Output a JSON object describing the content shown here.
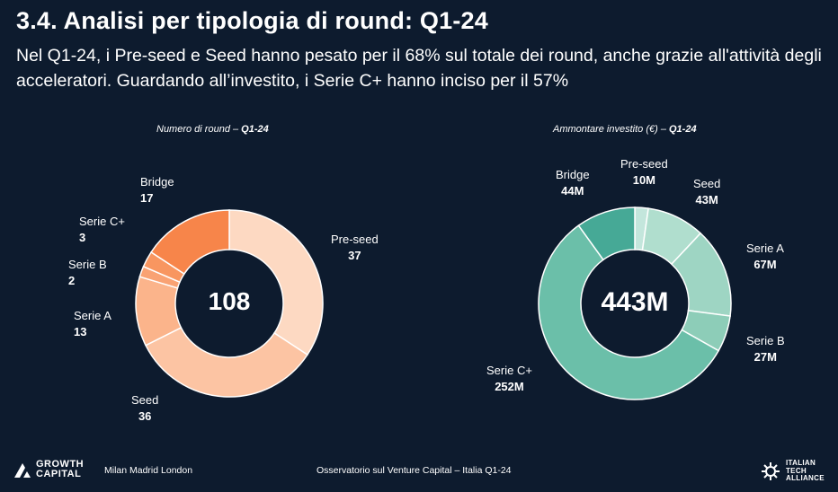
{
  "header": {
    "title": "3.4. Analisi per tipologia di round: Q1-24",
    "subtitle": "Nel Q1-24, i Pre-seed e Seed hanno pesato per il 68% sul totale dei round, anche grazie all'attività degli acceleratori. Guardando all’investito, i Serie C+ hanno inciso per il 57%"
  },
  "chart_data": [
    {
      "type": "pie",
      "variant": "donut",
      "caption_prefix": "Numero di round – ",
      "caption_bold": "Q1-24",
      "center_label": "108",
      "categories": [
        "Pre-seed",
        "Seed",
        "Serie A",
        "Serie B",
        "Serie C+",
        "Bridge"
      ],
      "values": [
        37,
        36,
        13,
        2,
        3,
        17
      ],
      "value_labels": [
        "37",
        "36",
        "13",
        "2",
        "3",
        "17"
      ],
      "colors": [
        "#fdd9c2",
        "#fcc4a3",
        "#fbb48b",
        "#f9a273",
        "#f89660",
        "#f7854a"
      ]
    },
    {
      "type": "pie",
      "variant": "donut",
      "caption_prefix": "Ammontare investito (€) – ",
      "caption_bold": "Q1-24",
      "center_label": "443M",
      "categories": [
        "Pre-seed",
        "Seed",
        "Serie A",
        "Serie B",
        "Serie C+",
        "Bridge"
      ],
      "values": [
        10,
        43,
        67,
        27,
        252,
        44
      ],
      "value_labels": [
        "10M",
        "43M",
        "67M",
        "27M",
        "252M",
        "44M"
      ],
      "colors": [
        "#c3e6dc",
        "#b0dece",
        "#9ed5c3",
        "#8dcdb8",
        "#6bbfa9",
        "#46a996"
      ]
    }
  ],
  "footer": {
    "brand_left_line1": "GROWTH",
    "brand_left_line2": "CAPITAL",
    "cities": "Milan Madrid London",
    "center": "Osservatorio sul Venture Capital – Italia Q1-24",
    "brand_right_line1": "ITALIAN",
    "brand_right_line2": "TECH",
    "brand_right_line3": "ALLIANCE"
  }
}
